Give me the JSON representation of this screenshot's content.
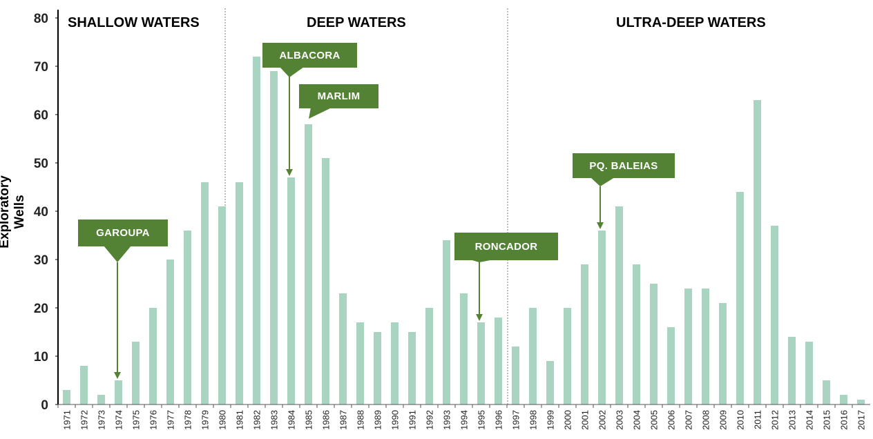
{
  "chart_data": {
    "type": "bar",
    "title": "",
    "xlabel": "",
    "ylabel": "Exploratory Wells",
    "ylim": [
      0,
      80
    ],
    "yticks": [
      0,
      10,
      20,
      30,
      40,
      50,
      60,
      70,
      80
    ],
    "categories": [
      "1971",
      "1972",
      "1973",
      "1974",
      "1975",
      "1976",
      "1977",
      "1978",
      "1979",
      "1980",
      "1981",
      "1982",
      "1983",
      "1984",
      "1985",
      "1986",
      "1987",
      "1988",
      "1989",
      "1990",
      "1991",
      "1992",
      "1993",
      "1994",
      "1995",
      "1996",
      "1997",
      "1998",
      "1999",
      "2000",
      "2001",
      "2002",
      "2003",
      "2004",
      "2005",
      "2006",
      "2007",
      "2008",
      "2009",
      "2010",
      "2011",
      "2012",
      "2013",
      "2014",
      "2015",
      "2016",
      "2017"
    ],
    "values": [
      3,
      8,
      2,
      5,
      13,
      20,
      30,
      36,
      46,
      41,
      46,
      72,
      69,
      47,
      58,
      51,
      23,
      17,
      15,
      17,
      15,
      20,
      34,
      23,
      17,
      18,
      12,
      20,
      9,
      20,
      29,
      36,
      41,
      29,
      25,
      16,
      24,
      24,
      21,
      44,
      63,
      37,
      14,
      13,
      5,
      2,
      1
    ],
    "regions": [
      {
        "label": "SHALLOW WATERS",
        "from": "1971",
        "to": "1980"
      },
      {
        "label": "DEEP WATERS",
        "from": "1981",
        "to": "1996"
      },
      {
        "label": "ULTRA-DEEP WATERS",
        "from": "1997",
        "to": "2017"
      }
    ],
    "annotations": [
      {
        "label": "GAROUPA",
        "year": "1974"
      },
      {
        "label": "ALBACORA",
        "year": "1984"
      },
      {
        "label": "MARLIM",
        "year": "1985"
      },
      {
        "label": "RONCADOR",
        "year": "1995"
      },
      {
        "label": "PQ. BALEIAS",
        "year": "2002"
      }
    ],
    "bar_color": "#a9d4c1",
    "annotation_color": "#548235",
    "grid": false
  }
}
